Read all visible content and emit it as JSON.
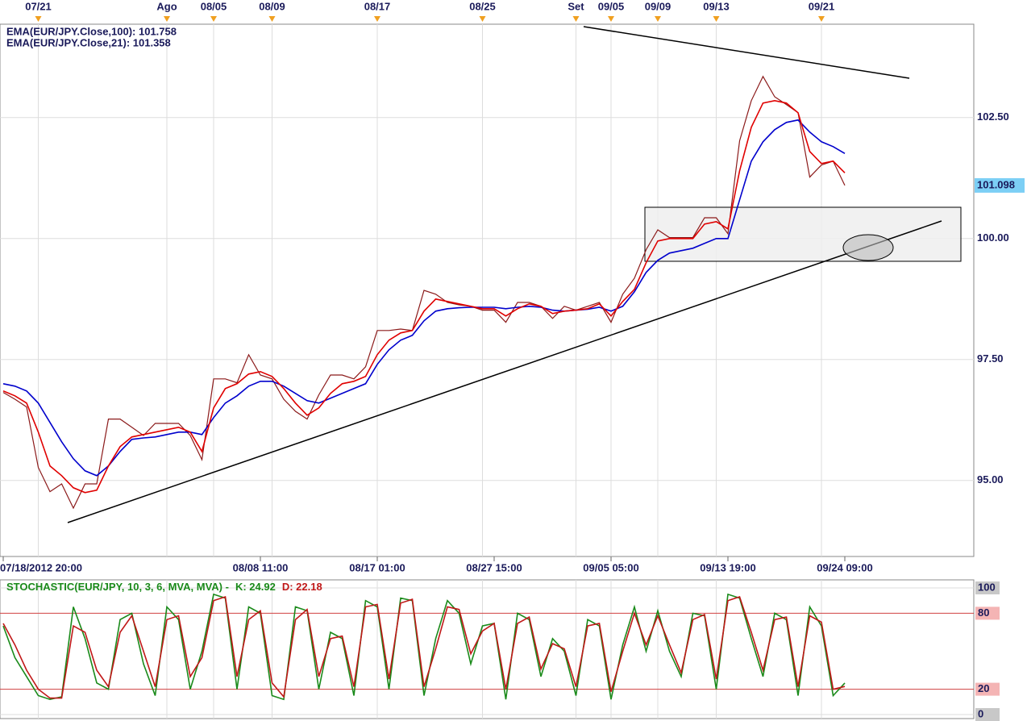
{
  "chart_data": [
    {
      "type": "line",
      "categories": [
        "07/18/2012 20:00",
        null,
        null,
        null,
        null,
        null,
        null,
        null,
        null,
        null,
        null,
        null,
        null,
        null,
        null,
        null,
        null,
        null,
        null,
        null,
        null,
        null,
        "08/08 11:00",
        null,
        null,
        null,
        null,
        null,
        null,
        null,
        null,
        null,
        "08/17 01:00",
        null,
        null,
        null,
        null,
        null,
        null,
        null,
        null,
        null,
        "08/27 15:00",
        null,
        null,
        null,
        null,
        null,
        null,
        null,
        null,
        null,
        "09/05 05:00",
        null,
        null,
        null,
        null,
        null,
        null,
        null,
        null,
        null,
        "09/13 19:00",
        null,
        null,
        null,
        null,
        null,
        null,
        null,
        null,
        null,
        "09/24 09:00",
        null,
        null,
        null,
        null,
        null,
        null,
        null,
        null,
        null,
        null,
        null
      ],
      "top_categories": [
        null,
        null,
        null,
        "07/21",
        null,
        null,
        null,
        null,
        null,
        null,
        null,
        null,
        null,
        null,
        "Ago",
        null,
        null,
        null,
        "08/05",
        null,
        null,
        null,
        null,
        "08/09",
        null,
        null,
        null,
        null,
        null,
        null,
        null,
        null,
        "08/17",
        null,
        null,
        null,
        null,
        null,
        null,
        null,
        null,
        "08/25",
        null,
        null,
        null,
        null,
        null,
        null,
        null,
        "Set",
        null,
        null,
        "09/05",
        null,
        null,
        null,
        "09/09",
        null,
        null,
        null,
        null,
        "09/13",
        null,
        null,
        null,
        null,
        null,
        null,
        null,
        null,
        "09/21",
        null,
        null,
        null,
        null,
        null,
        null,
        null,
        null,
        null,
        null,
        null,
        null,
        null
      ],
      "series": [
        {
          "color": "#8b1a1a",
          "values": [
            96.82,
            96.68,
            96.52,
            95.27,
            94.77,
            94.93,
            94.43,
            94.93,
            94.93,
            96.27,
            96.27,
            96.1,
            95.93,
            96.18,
            96.18,
            96.18,
            95.93,
            95.43,
            97.1,
            97.1,
            97.02,
            97.6,
            97.18,
            97.1,
            96.68,
            96.43,
            96.27,
            96.77,
            97.18,
            97.18,
            97.1,
            97.35,
            98.1,
            98.1,
            98.13,
            98.1,
            98.93,
            98.85,
            98.68,
            98.63,
            98.6,
            98.52,
            98.52,
            98.27,
            98.68,
            98.68,
            98.6,
            98.35,
            98.6,
            98.52,
            98.6,
            98.68,
            98.27,
            98.85,
            99.18,
            99.77,
            100.18,
            100.02,
            100.02,
            100.02,
            100.43,
            100.43,
            100.1,
            102.02,
            102.85,
            103.35,
            102.93,
            102.77,
            102.6,
            101.27,
            101.52,
            101.6,
            101.098,
            null,
            null,
            null,
            null,
            null,
            null,
            null,
            null,
            null,
            null,
            null
          ]
        },
        {
          "name": "EMA(EUR/JPY.Close,100): 101.758",
          "color": "#0000cc",
          "values": [
            97.0,
            96.95,
            96.85,
            96.6,
            96.2,
            95.8,
            95.45,
            95.2,
            95.1,
            95.3,
            95.6,
            95.85,
            95.88,
            95.9,
            95.95,
            96.0,
            96.0,
            95.95,
            96.3,
            96.6,
            96.75,
            96.95,
            97.05,
            97.05,
            96.95,
            96.8,
            96.65,
            96.6,
            96.7,
            96.8,
            96.9,
            97.0,
            97.4,
            97.7,
            97.9,
            98.0,
            98.3,
            98.5,
            98.55,
            98.57,
            98.58,
            98.58,
            98.58,
            98.55,
            98.58,
            98.6,
            98.58,
            98.52,
            98.5,
            98.52,
            98.54,
            98.58,
            98.5,
            98.6,
            98.9,
            99.3,
            99.55,
            99.7,
            99.75,
            99.8,
            99.9,
            100.0,
            100.0,
            100.8,
            101.6,
            102.0,
            102.25,
            102.4,
            102.45,
            102.2,
            102.0,
            101.9,
            101.758,
            null,
            null,
            null,
            null,
            null,
            null,
            null,
            null,
            null,
            null,
            null
          ]
        },
        {
          "name": "EMA(EUR/JPY.Close,21): 101.358",
          "color": "#e00000",
          "values": [
            96.85,
            96.75,
            96.6,
            96.0,
            95.3,
            95.1,
            94.85,
            94.75,
            94.8,
            95.3,
            95.7,
            95.9,
            95.95,
            96.0,
            96.05,
            96.1,
            96.0,
            95.6,
            96.5,
            96.9,
            97.0,
            97.2,
            97.25,
            97.15,
            96.9,
            96.6,
            96.35,
            96.5,
            96.8,
            97.0,
            97.05,
            97.15,
            97.6,
            97.9,
            98.05,
            98.1,
            98.5,
            98.75,
            98.7,
            98.65,
            98.6,
            98.55,
            98.55,
            98.4,
            98.55,
            98.65,
            98.6,
            98.45,
            98.5,
            98.52,
            98.55,
            98.65,
            98.4,
            98.7,
            98.95,
            99.5,
            99.95,
            100.0,
            100.0,
            100.0,
            100.3,
            100.35,
            100.2,
            101.4,
            102.3,
            102.8,
            102.85,
            102.8,
            102.6,
            101.8,
            101.55,
            101.6,
            101.358,
            null,
            null,
            null,
            null,
            null,
            null,
            null,
            null,
            null,
            null,
            null
          ]
        }
      ],
      "ylim": [
        93.43,
        104.43
      ],
      "yticks": [
        {
          "value": 95,
          "label": "95.00"
        },
        {
          "value": 97.5,
          "label": "97.50"
        },
        {
          "value": 100,
          "label": "100.00"
        },
        {
          "value": 102.5,
          "label": "102.50"
        }
      ],
      "last_price": {
        "value": 101.098,
        "label": "101.098"
      },
      "grid": true
    },
    {
      "type": "line",
      "title": "STOCHASTIC(EUR/JPY, 10, 3, 6, MVA, MVA) -",
      "series": [
        {
          "name": "K: 24.92",
          "color": "#1a8a1a",
          "values": [
            70,
            45,
            30,
            15,
            12,
            14,
            85,
            60,
            25,
            20,
            75,
            80,
            40,
            15,
            85,
            75,
            20,
            50,
            95,
            92,
            20,
            85,
            80,
            15,
            12,
            85,
            82,
            20,
            65,
            60,
            15,
            90,
            85,
            20,
            92,
            90,
            15,
            60,
            90,
            80,
            40,
            70,
            72,
            12,
            80,
            75,
            30,
            60,
            50,
            15,
            75,
            70,
            12,
            55,
            85,
            50,
            82,
            50,
            30,
            80,
            78,
            20,
            95,
            92,
            60,
            30,
            80,
            75,
            15,
            85,
            70,
            15,
            24.92
          ]
        },
        {
          "name": "D: 22.18",
          "color": "#c01818",
          "values": [
            72,
            55,
            35,
            20,
            13,
            13,
            70,
            65,
            35,
            22,
            65,
            78,
            50,
            22,
            75,
            78,
            30,
            45,
            90,
            93,
            30,
            75,
            82,
            25,
            14,
            75,
            83,
            30,
            60,
            62,
            22,
            85,
            87,
            28,
            88,
            91,
            22,
            52,
            85,
            83,
            48,
            66,
            72,
            20,
            72,
            77,
            36,
            56,
            52,
            22,
            70,
            72,
            18,
            50,
            80,
            55,
            78,
            55,
            33,
            75,
            79,
            28,
            90,
            93,
            65,
            35,
            75,
            77,
            22,
            78,
            73,
            20,
            22.18
          ]
        }
      ],
      "ylim": [
        0,
        100
      ],
      "yticks": [
        0,
        20,
        80,
        100
      ],
      "grid": true
    }
  ]
}
